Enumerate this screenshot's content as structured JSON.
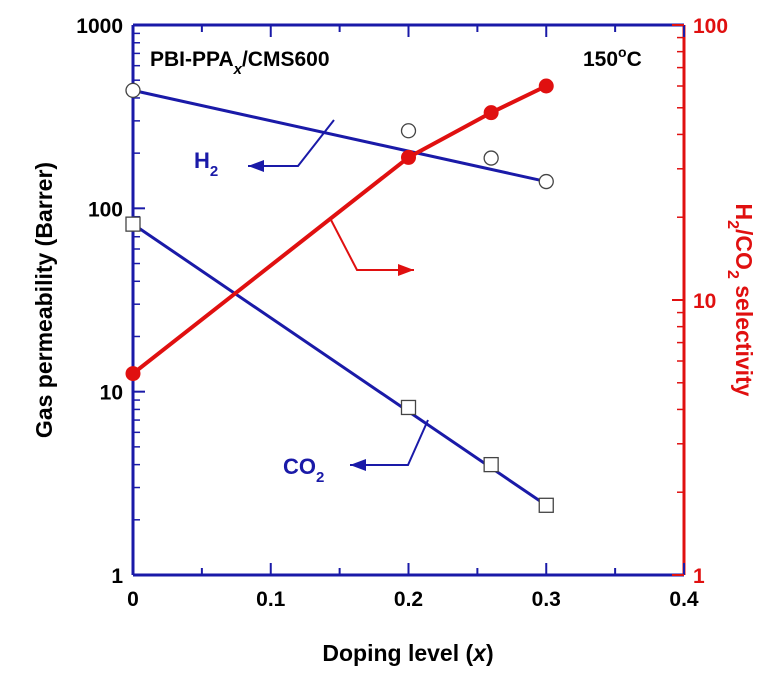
{
  "chart_data": {
    "type": "line",
    "annotation_left": "PBI-PPA",
    "annotation_left_sub": "x",
    "annotation_left_rest": "/CMS600",
    "annotation_right": "150",
    "annotation_right_sup": "o",
    "annotation_right_rest": "C",
    "xlabel": "Doping level (",
    "xlabel_var": "x",
    "xlabel_end": ")",
    "ylabel_left": "Gas permeability (Barrer)",
    "ylabel_right_parts": [
      "H",
      "2",
      "/CO",
      "2",
      " selectivity"
    ],
    "xlim": [
      0,
      0.4
    ],
    "xticks": [
      "0",
      "0.1",
      "0.2",
      "0.3",
      "0.4"
    ],
    "ylim_left": [
      1,
      1000
    ],
    "yticks_left": [
      "1",
      "10",
      "100",
      "1000"
    ],
    "ylim_right": [
      1,
      100
    ],
    "yticks_right": [
      "1",
      "10",
      "100"
    ],
    "yscale": "log",
    "grid": false,
    "series": [
      {
        "name": "H",
        "name_sub": "2",
        "axis": "left",
        "color": "#1a1aa8",
        "marker": "open-circle",
        "x": [
          0,
          0.2,
          0.26,
          0.3
        ],
        "values": [
          440,
          265,
          188,
          140
        ]
      },
      {
        "name": "CO",
        "name_sub": "2",
        "axis": "left",
        "color": "#1a1aa8",
        "marker": "open-square",
        "x": [
          0,
          0.2,
          0.26,
          0.3
        ],
        "values": [
          82,
          8.2,
          4.0,
          2.4
        ]
      },
      {
        "name": "H2/CO2 selectivity",
        "axis": "right",
        "color": "#e01010",
        "marker": "filled-circle",
        "x": [
          0,
          0.2,
          0.26,
          0.3
        ],
        "values": [
          5.4,
          33,
          48,
          60
        ]
      }
    ],
    "colors": {
      "left_axis": "#1a1aa8",
      "right_axis": "#e01010",
      "label_text": "#000000"
    }
  }
}
